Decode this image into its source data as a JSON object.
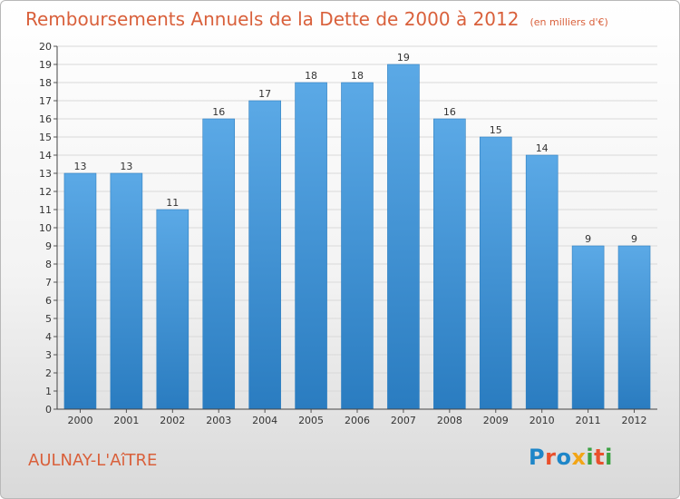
{
  "chart_data": {
    "type": "bar",
    "title": "Remboursements Annuels de la Dette de 2000 à 2012",
    "subtitle": "(en milliers d'€)",
    "categories": [
      "2000",
      "2001",
      "2002",
      "2003",
      "2004",
      "2005",
      "2006",
      "2007",
      "2008",
      "2009",
      "2010",
      "2011",
      "2012"
    ],
    "values": [
      13,
      13,
      11,
      16,
      17,
      18,
      18,
      19,
      16,
      15,
      14,
      9,
      9
    ],
    "data_labels": [
      "13",
      "13",
      "11",
      "16",
      "17",
      "18",
      "18",
      "19",
      "16",
      "15",
      "14",
      "9",
      "9"
    ],
    "ylim": [
      0,
      20
    ],
    "yticks": [
      0,
      1,
      2,
      3,
      4,
      5,
      6,
      7,
      8,
      9,
      10,
      11,
      12,
      13,
      14,
      15,
      16,
      17,
      18,
      19,
      20
    ],
    "grid": true,
    "bar_color_top": "#5ba9e6",
    "bar_color_bottom": "#2a7cc0",
    "grid_color": "#d9d9d9"
  },
  "commune": "AULNAY-L'AîTRE",
  "logo": {
    "text": "Proxiti"
  },
  "colors": {
    "title": "#d9603b"
  }
}
